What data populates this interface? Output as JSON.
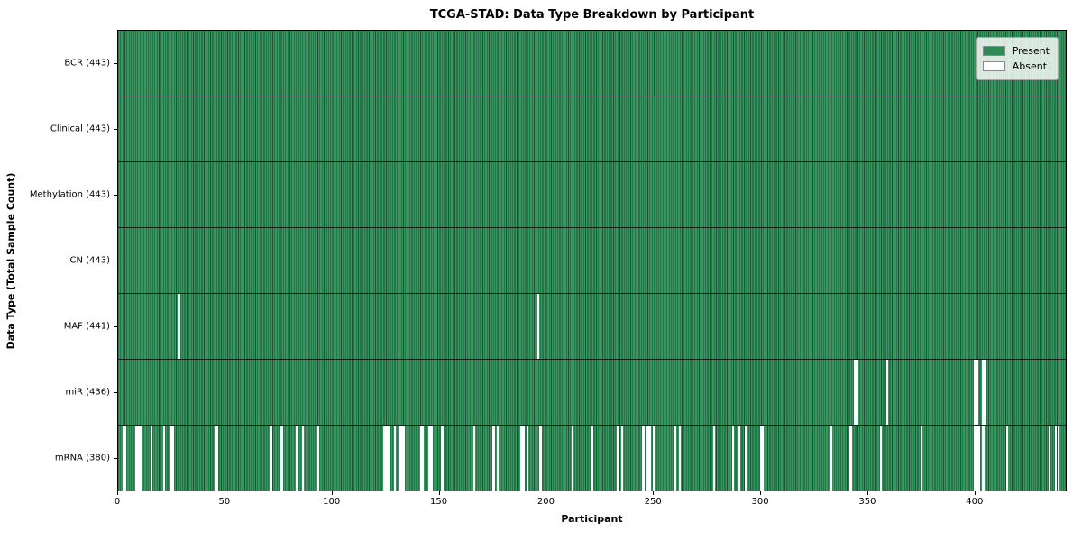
{
  "chart_data": {
    "type": "heatmap",
    "title": "TCGA-STAD: Data Type Breakdown by Participant",
    "xlabel": "Participant",
    "ylabel": "Data Type (Total Sample Count)",
    "n_participants": 443,
    "x_ticks": [
      0,
      50,
      100,
      150,
      200,
      250,
      300,
      350,
      400
    ],
    "legend": {
      "items": [
        {
          "label": "Present",
          "color": "#2e8b57"
        },
        {
          "label": "Absent",
          "color": "#ffffff"
        }
      ]
    },
    "colors": {
      "present": "#2e8b57",
      "bar_edge": "#1b5233",
      "absent": "#ffffff"
    },
    "rows": [
      {
        "label": "BCR (443)",
        "data_type": "BCR",
        "present_count": 443,
        "absent_participants": []
      },
      {
        "label": "Clinical (443)",
        "data_type": "Clinical",
        "present_count": 443,
        "absent_participants": []
      },
      {
        "label": "Methylation (443)",
        "data_type": "Methylation",
        "present_count": 443,
        "absent_participants": []
      },
      {
        "label": "CN (443)",
        "data_type": "CN",
        "present_count": 443,
        "absent_participants": []
      },
      {
        "label": "MAF (441)",
        "data_type": "MAF",
        "present_count": 441,
        "absent_participants": [
          28,
          196
        ]
      },
      {
        "label": "miR (436)",
        "data_type": "miR",
        "present_count": 436,
        "absent_participants": [
          344,
          345,
          359,
          400,
          401,
          404,
          405
        ]
      },
      {
        "label": "mRNA (380)",
        "data_type": "mRNA",
        "present_count": 380,
        "absent_participants": [
          2,
          3,
          8,
          9,
          10,
          15,
          21,
          24,
          25,
          45,
          46,
          71,
          76,
          83,
          86,
          93,
          124,
          125,
          126,
          129,
          131,
          132,
          133,
          141,
          142,
          145,
          146,
          151,
          166,
          175,
          177,
          188,
          189,
          191,
          197,
          212,
          221,
          233,
          235,
          245,
          247,
          248,
          250,
          260,
          262,
          278,
          287,
          290,
          293,
          300,
          301,
          333,
          342,
          356,
          375,
          400,
          401,
          402,
          404,
          415,
          435,
          438,
          439
        ]
      }
    ]
  }
}
